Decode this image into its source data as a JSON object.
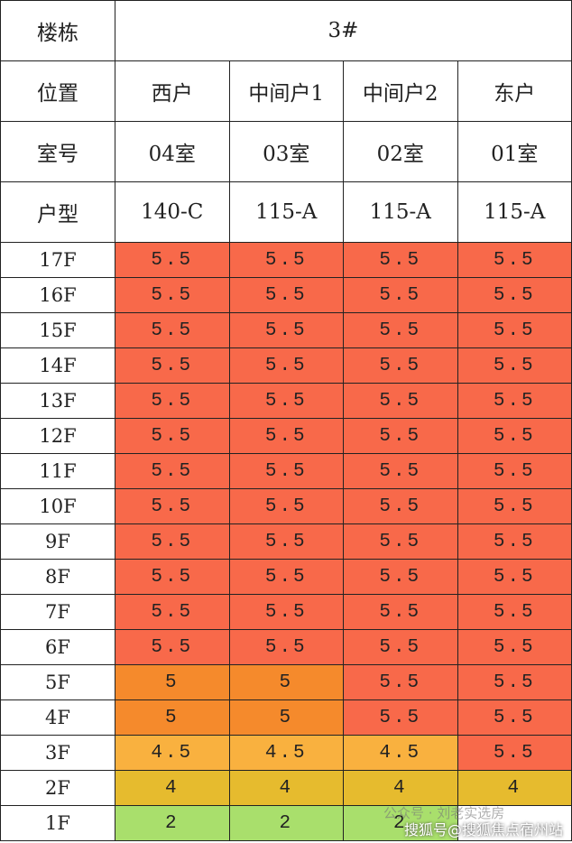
{
  "table": {
    "building_label": "楼栋",
    "building": "3#",
    "header_rows": [
      {
        "label": "位置",
        "cells": [
          "西户",
          "中间户1",
          "中间户2",
          "东户"
        ]
      },
      {
        "label": "室号",
        "cells": [
          "04室",
          "03室",
          "02室",
          "01室"
        ]
      },
      {
        "label": "户型",
        "cells": [
          "140-C",
          "115-A",
          "115-A",
          "115-A"
        ]
      }
    ],
    "rows": [
      {
        "floor": "17F",
        "cells": [
          "5.5",
          "5.5",
          "5.5",
          "5.5"
        ],
        "colors": [
          "#f8694a",
          "#f8694a",
          "#f8694a",
          "#f8694a"
        ]
      },
      {
        "floor": "16F",
        "cells": [
          "5.5",
          "5.5",
          "5.5",
          "5.5"
        ],
        "colors": [
          "#f8694a",
          "#f8694a",
          "#f8694a",
          "#f8694a"
        ]
      },
      {
        "floor": "15F",
        "cells": [
          "5.5",
          "5.5",
          "5.5",
          "5.5"
        ],
        "colors": [
          "#f8694a",
          "#f8694a",
          "#f8694a",
          "#f8694a"
        ]
      },
      {
        "floor": "14F",
        "cells": [
          "5.5",
          "5.5",
          "5.5",
          "5.5"
        ],
        "colors": [
          "#f8694a",
          "#f8694a",
          "#f8694a",
          "#f8694a"
        ]
      },
      {
        "floor": "13F",
        "cells": [
          "5.5",
          "5.5",
          "5.5",
          "5.5"
        ],
        "colors": [
          "#f8694a",
          "#f8694a",
          "#f8694a",
          "#f8694a"
        ]
      },
      {
        "floor": "12F",
        "cells": [
          "5.5",
          "5.5",
          "5.5",
          "5.5"
        ],
        "colors": [
          "#f8694a",
          "#f8694a",
          "#f8694a",
          "#f8694a"
        ]
      },
      {
        "floor": "11F",
        "cells": [
          "5.5",
          "5.5",
          "5.5",
          "5.5"
        ],
        "colors": [
          "#f8694a",
          "#f8694a",
          "#f8694a",
          "#f8694a"
        ]
      },
      {
        "floor": "10F",
        "cells": [
          "5.5",
          "5.5",
          "5.5",
          "5.5"
        ],
        "colors": [
          "#f8694a",
          "#f8694a",
          "#f8694a",
          "#f8694a"
        ]
      },
      {
        "floor": "9F",
        "cells": [
          "5.5",
          "5.5",
          "5.5",
          "5.5"
        ],
        "colors": [
          "#f8694a",
          "#f8694a",
          "#f8694a",
          "#f8694a"
        ]
      },
      {
        "floor": "8F",
        "cells": [
          "5.5",
          "5.5",
          "5.5",
          "5.5"
        ],
        "colors": [
          "#f8694a",
          "#f8694a",
          "#f8694a",
          "#f8694a"
        ]
      },
      {
        "floor": "7F",
        "cells": [
          "5.5",
          "5.5",
          "5.5",
          "5.5"
        ],
        "colors": [
          "#f8694a",
          "#f8694a",
          "#f8694a",
          "#f8694a"
        ]
      },
      {
        "floor": "6F",
        "cells": [
          "5.5",
          "5.5",
          "5.5",
          "5.5"
        ],
        "colors": [
          "#f8694a",
          "#f8694a",
          "#f8694a",
          "#f8694a"
        ]
      },
      {
        "floor": "5F",
        "cells": [
          "5",
          "5",
          "5.5",
          "5.5"
        ],
        "colors": [
          "#f58a2c",
          "#f58a2c",
          "#f8694a",
          "#f8694a"
        ]
      },
      {
        "floor": "4F",
        "cells": [
          "5",
          "5",
          "5.5",
          "5.5"
        ],
        "colors": [
          "#f58a2c",
          "#f58a2c",
          "#f8694a",
          "#f8694a"
        ]
      },
      {
        "floor": "3F",
        "cells": [
          "4.5",
          "4.5",
          "4.5",
          "5.5"
        ],
        "colors": [
          "#f9b13f",
          "#f9b13f",
          "#f9b13f",
          "#f8694a"
        ]
      },
      {
        "floor": "2F",
        "cells": [
          "4",
          "4",
          "4",
          "4"
        ],
        "colors": [
          "#e6bb2e",
          "#e6bb2e",
          "#e6bb2e",
          "#e6bb2e"
        ]
      },
      {
        "floor": "1F",
        "cells": [
          "2",
          "2",
          "2",
          ""
        ],
        "colors": [
          "#a9df6c",
          "#a9df6c",
          "#a9df6c",
          "#ffffff"
        ]
      }
    ],
    "watermark_back": "公众号 · 刘老实选房",
    "watermark_front": "搜狐号@搜狐焦点宿州站"
  }
}
